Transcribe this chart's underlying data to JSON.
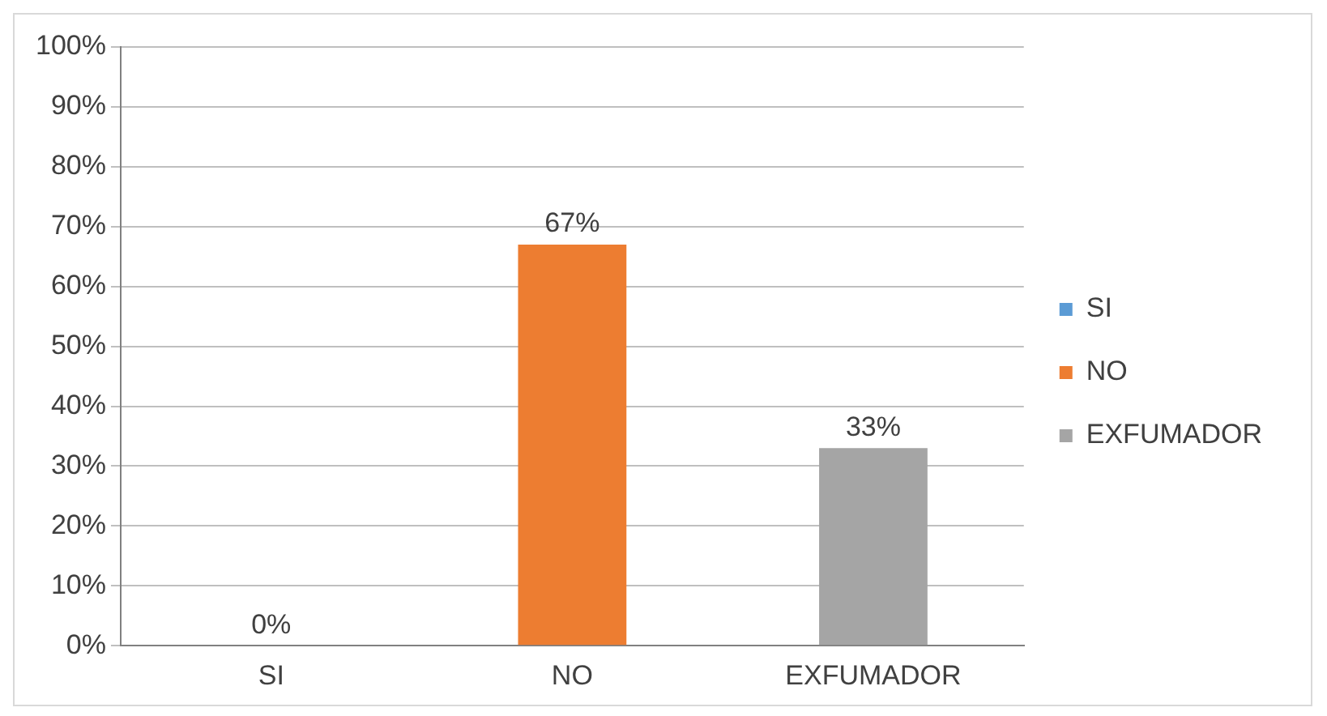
{
  "chart_data": {
    "type": "bar",
    "categories": [
      "SI",
      "NO",
      "EXFUMADOR"
    ],
    "series": [
      {
        "name": "SI",
        "color": "#5b9bd5",
        "values": [
          0,
          null,
          null
        ],
        "value_labels": [
          "0%",
          null,
          null
        ]
      },
      {
        "name": "NO",
        "color": "#ed7d31",
        "values": [
          null,
          67,
          null
        ],
        "value_labels": [
          null,
          "67%",
          null
        ]
      },
      {
        "name": "EXFUMADOR",
        "color": "#a5a5a5",
        "values": [
          null,
          null,
          33
        ],
        "value_labels": [
          null,
          null,
          "33%"
        ]
      }
    ],
    "ylim": [
      0,
      100
    ],
    "yticks": [
      {
        "value": 0,
        "label": "0%"
      },
      {
        "value": 10,
        "label": "10%"
      },
      {
        "value": 20,
        "label": "20%"
      },
      {
        "value": 30,
        "label": "30%"
      },
      {
        "value": 40,
        "label": "40%"
      },
      {
        "value": 50,
        "label": "50%"
      },
      {
        "value": 60,
        "label": "60%"
      },
      {
        "value": 70,
        "label": "70%"
      },
      {
        "value": 80,
        "label": "80%"
      },
      {
        "value": 90,
        "label": "90%"
      },
      {
        "value": 100,
        "label": "100%"
      }
    ],
    "grid": "y",
    "legend": "right"
  }
}
